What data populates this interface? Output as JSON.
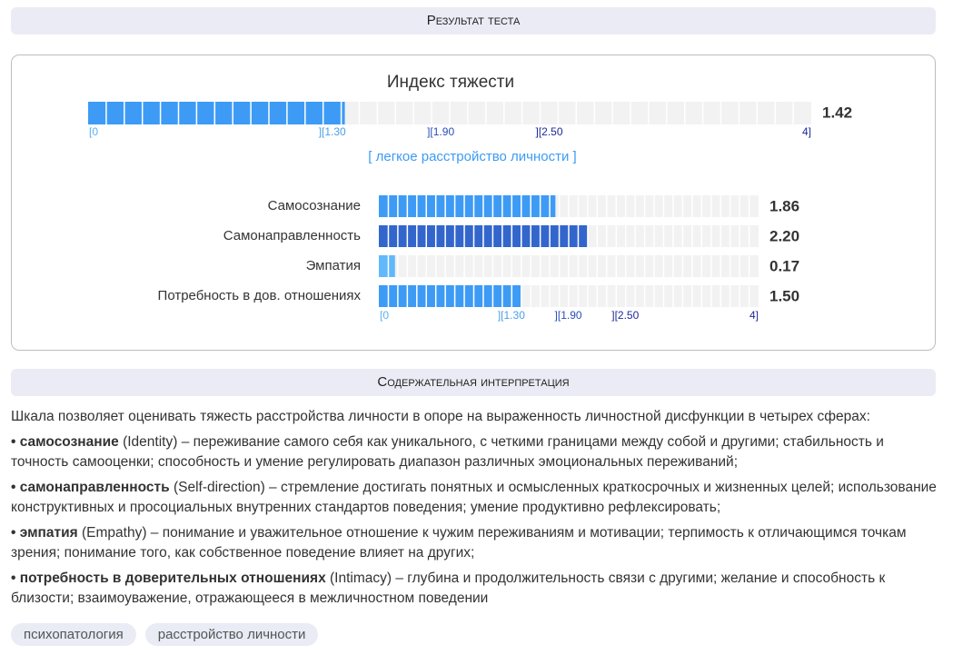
{
  "header": {
    "title": "Результат теста"
  },
  "result": {
    "title": "Индекс тяжести",
    "scale": {
      "lim": [
        0,
        4
      ],
      "ticks": [
        {
          "value": 0,
          "label": "[0"
        },
        {
          "value": 1.3,
          "label": "][1.30"
        },
        {
          "value": 1.9,
          "label": "][1.90"
        },
        {
          "value": 2.5,
          "label": "][2.50"
        },
        {
          "value": 4,
          "label": "4]"
        }
      ],
      "tick_colors": [
        "#5ab0f0",
        "#4a9fe8",
        "#2b4fb8",
        "#1c2a9c",
        "#1c2a9c"
      ]
    },
    "index": {
      "value": 1.42,
      "color": "#3d9bf5"
    },
    "verdict": "[ легкое расстройство личности ]",
    "subscales": {
      "categories": [
        "Самосознание",
        "Самонаправленность",
        "Эмпатия",
        "Потребность в дов. отношениях"
      ],
      "values": [
        1.86,
        2.2,
        0.17,
        1.5
      ],
      "value_labels": [
        "1.86",
        "2.20",
        "0.17",
        "1.50"
      ],
      "colors": [
        "#3d9bf5",
        "#3366cc",
        "#61b8fb",
        "#3d9bf5"
      ]
    }
  },
  "interpretation": {
    "title": "Содержательная интерпретация",
    "intro": "Шкала позволяет оценивать тяжесть расстройства личности в опоре на выраженность личностной дисфункции в четырех сферах:",
    "items": [
      {
        "term": "самосознание",
        "text": " (Identity) – переживание самого себя как уникального, с четкими границами между собой и другими; стабильность и точность самооценки; способность и умение регулировать диапазон различных эмоциональных переживаний;"
      },
      {
        "term": "самонаправленность",
        "text": " (Self-direction) – стремление достигать понятных и осмысленных краткосрочных и жизненных целей; использование конструктивных и просоциальных внутренних стандартов поведения; умение продуктивно рефлексировать;"
      },
      {
        "term": "эмпатия",
        "text": " (Empathy) – понимание и уважительное отношение к чужим переживаниям и мотивации; терпимость к отличающимся точкам зрения; понимание того, как собственное поведение влияет на других;"
      },
      {
        "term": "потребность в доверительных отношениях",
        "text": " (Intimacy) – глубина и продолжительность связи с другими; желание и способность к близости; взаимоуважение, отражающееся в межличностном поведении"
      }
    ]
  },
  "tags": [
    "психопатология",
    "расстройство личности"
  ]
}
